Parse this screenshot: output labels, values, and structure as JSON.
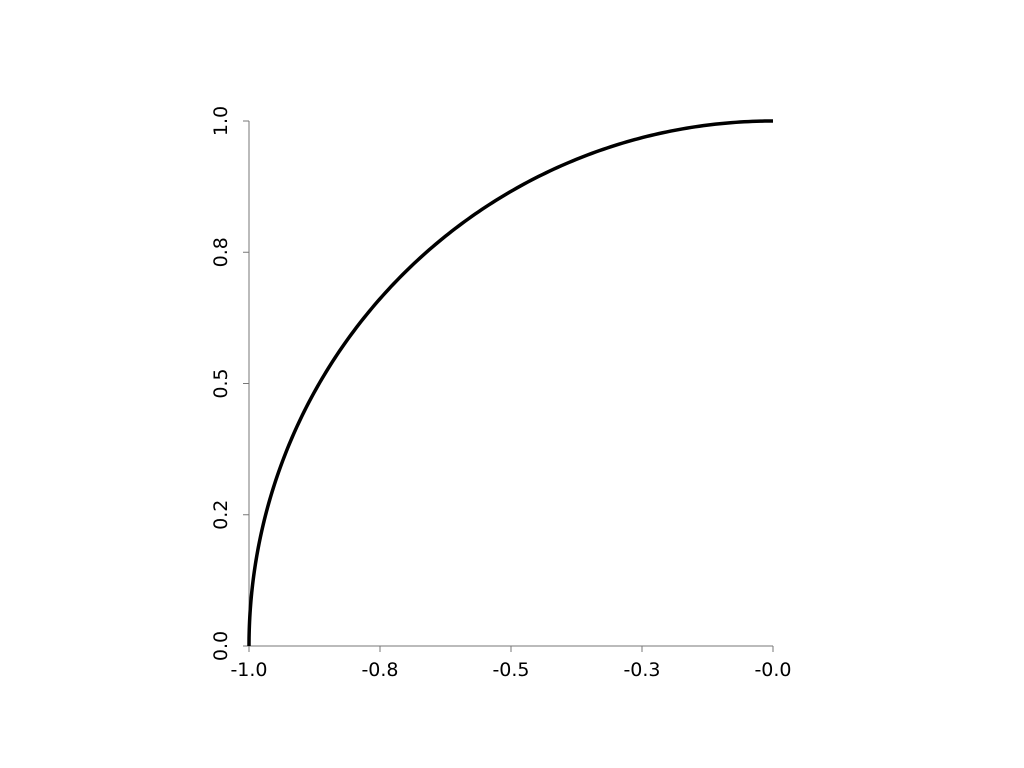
{
  "chart_data": {
    "type": "line",
    "title": "",
    "xlabel": "",
    "ylabel": "",
    "xlim": [
      -1.0,
      0.0
    ],
    "ylim": [
      0.0,
      1.0
    ],
    "grid": false,
    "x_ticks": [
      -1.0,
      -0.75,
      -0.5,
      -0.25,
      0.0
    ],
    "x_tick_labels": [
      "-1.0",
      "-0.8",
      "-0.5",
      "-0.3",
      "-0.0"
    ],
    "y_ticks": [
      0.0,
      0.25,
      0.5,
      0.75,
      1.0
    ],
    "y_tick_labels": [
      "0.0",
      "0.2",
      "0.5",
      "0.8",
      "1.0"
    ],
    "series": [
      {
        "color": "#000000",
        "x": [
          -1.0,
          -0.99,
          -0.96,
          -0.9,
          -0.8,
          -0.7,
          -0.6,
          -0.5,
          -0.4,
          -0.3,
          -0.2,
          -0.1,
          0.0
        ],
        "y": [
          0.0,
          0.141,
          0.28,
          0.436,
          0.6,
          0.714,
          0.8,
          0.866,
          0.917,
          0.954,
          0.98,
          0.995,
          1.0
        ]
      }
    ]
  }
}
